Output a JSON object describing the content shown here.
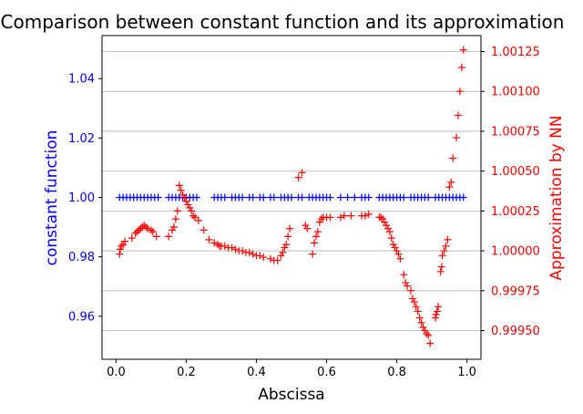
{
  "chart_data": {
    "type": "scatter",
    "title": "Comparison between constant function and its approximation",
    "xlabel": "Abscissa",
    "ylabel": "constant function",
    "y2label": "Approximation by NN",
    "xlim": [
      -0.04,
      1.04
    ],
    "ylim": [
      0.9455,
      1.0545
    ],
    "y2lim": [
      0.99932,
      1.00135
    ],
    "xticks": [
      "0.0",
      "0.2",
      "0.4",
      "0.6",
      "0.8",
      "1.0"
    ],
    "xtick_values": [
      0.0,
      0.2,
      0.4,
      0.6,
      0.8,
      1.0
    ],
    "yticks": [
      "0.96",
      "0.98",
      "1.00",
      "1.02",
      "1.04"
    ],
    "ytick_values": [
      0.96,
      0.98,
      1.0,
      1.02,
      1.04
    ],
    "y2ticks": [
      "0.99950",
      "0.99975",
      "1.00000",
      "1.00025",
      "1.00050",
      "1.00075",
      "1.00100",
      "1.00125"
    ],
    "y2tick_values": [
      0.9995,
      0.99975,
      1.0,
      1.00025,
      1.0005,
      1.00075,
      1.001,
      1.00125
    ],
    "grid": "horizontal lines at right-axis ticks",
    "colors": {
      "left": "#0000ff",
      "right": "#ff0000",
      "grid": "#b0b0b0"
    },
    "series": [
      {
        "marker": "+",
        "axis": "left",
        "color": "#0000ff",
        "x": [
          0.01,
          0.02,
          0.03,
          0.04,
          0.05,
          0.06,
          0.07,
          0.08,
          0.09,
          0.1,
          0.11,
          0.12,
          0.15,
          0.16,
          0.17,
          0.18,
          0.19,
          0.2,
          0.21,
          0.22,
          0.23,
          0.28,
          0.29,
          0.3,
          0.31,
          0.33,
          0.34,
          0.35,
          0.36,
          0.38,
          0.39,
          0.41,
          0.42,
          0.44,
          0.45,
          0.47,
          0.48,
          0.49,
          0.5,
          0.52,
          0.53,
          0.55,
          0.56,
          0.57,
          0.58,
          0.59,
          0.6,
          0.61,
          0.64,
          0.66,
          0.68,
          0.7,
          0.71,
          0.72,
          0.75,
          0.76,
          0.77,
          0.78,
          0.79,
          0.8,
          0.81,
          0.82,
          0.84,
          0.85,
          0.86,
          0.87,
          0.88,
          0.89,
          0.91,
          0.92,
          0.93,
          0.94,
          0.95,
          0.96,
          0.97,
          0.98,
          0.99
        ],
        "y": [
          1.0,
          1.0,
          1.0,
          1.0,
          1.0,
          1.0,
          1.0,
          1.0,
          1.0,
          1.0,
          1.0,
          1.0,
          1.0,
          1.0,
          1.0,
          1.0,
          1.0,
          1.0,
          1.0,
          1.0,
          1.0,
          1.0,
          1.0,
          1.0,
          1.0,
          1.0,
          1.0,
          1.0,
          1.0,
          1.0,
          1.0,
          1.0,
          1.0,
          1.0,
          1.0,
          1.0,
          1.0,
          1.0,
          1.0,
          1.0,
          1.0,
          1.0,
          1.0,
          1.0,
          1.0,
          1.0,
          1.0,
          1.0,
          1.0,
          1.0,
          1.0,
          1.0,
          1.0,
          1.0,
          1.0,
          1.0,
          1.0,
          1.0,
          1.0,
          1.0,
          1.0,
          1.0,
          1.0,
          1.0,
          1.0,
          1.0,
          1.0,
          1.0,
          1.0,
          1.0,
          1.0,
          1.0,
          1.0,
          1.0,
          1.0,
          1.0,
          1.0
        ]
      },
      {
        "marker": "+",
        "axis": "right",
        "color": "#ff0000",
        "x": [
          0.01,
          0.012,
          0.015,
          0.02,
          0.025,
          0.045,
          0.055,
          0.06,
          0.065,
          0.07,
          0.075,
          0.08,
          0.085,
          0.09,
          0.1,
          0.105,
          0.115,
          0.15,
          0.16,
          0.165,
          0.17,
          0.175,
          0.18,
          0.185,
          0.19,
          0.195,
          0.2,
          0.205,
          0.21,
          0.215,
          0.22,
          0.225,
          0.235,
          0.25,
          0.265,
          0.28,
          0.29,
          0.295,
          0.3,
          0.31,
          0.32,
          0.33,
          0.34,
          0.35,
          0.36,
          0.37,
          0.38,
          0.39,
          0.4,
          0.41,
          0.42,
          0.44,
          0.45,
          0.46,
          0.47,
          0.475,
          0.48,
          0.485,
          0.49,
          0.495,
          0.52,
          0.53,
          0.54,
          0.545,
          0.56,
          0.565,
          0.57,
          0.575,
          0.58,
          0.585,
          0.59,
          0.6,
          0.61,
          0.64,
          0.65,
          0.67,
          0.7,
          0.71,
          0.72,
          0.75,
          0.755,
          0.76,
          0.765,
          0.77,
          0.775,
          0.78,
          0.785,
          0.79,
          0.795,
          0.8,
          0.805,
          0.81,
          0.82,
          0.825,
          0.83,
          0.84,
          0.845,
          0.85,
          0.855,
          0.86,
          0.865,
          0.87,
          0.875,
          0.88,
          0.885,
          0.89,
          0.895,
          0.91,
          0.912,
          0.915,
          0.918,
          0.925,
          0.928,
          0.93,
          0.935,
          0.94,
          0.945,
          0.95,
          0.955,
          0.96,
          0.97,
          0.975,
          0.98,
          0.985,
          0.99
        ],
        "y": [
          0.99998,
          1.00001,
          1.00003,
          1.00004,
          1.00006,
          1.00008,
          1.00011,
          1.00012,
          1.00013,
          1.00014,
          1.00015,
          1.00016,
          1.00015,
          1.00014,
          1.00013,
          1.00012,
          1.00009,
          1.00009,
          1.00013,
          1.00015,
          1.0002,
          1.00025,
          1.00041,
          1.00038,
          1.00035,
          1.00033,
          1.00031,
          1.00029,
          1.00027,
          1.00025,
          1.00022,
          1.00021,
          1.00019,
          1.00013,
          1.00007,
          1.00005,
          1.00004,
          1.00003,
          1.00003,
          1.00003,
          1.00002,
          1.00002,
          1.00001,
          1.0,
          1.0,
          0.99999,
          0.99999,
          0.99998,
          0.99997,
          0.99997,
          0.99996,
          0.99995,
          0.99994,
          0.99994,
          0.99997,
          0.99999,
          1.00002,
          1.00004,
          1.00009,
          1.00014,
          1.00046,
          1.00049,
          1.00016,
          1.00014,
          0.99998,
          1.00005,
          1.00009,
          1.00012,
          1.00018,
          1.0002,
          1.00021,
          1.00021,
          1.00021,
          1.00021,
          1.00022,
          1.00022,
          1.00022,
          1.00022,
          1.00023,
          1.00021,
          1.00021,
          1.0002,
          1.00018,
          1.00016,
          1.00014,
          1.00012,
          1.00008,
          1.00004,
          1.00002,
          1.0,
          0.99998,
          0.99995,
          0.99985,
          0.9998,
          0.99978,
          0.99975,
          0.9997,
          0.99968,
          0.99965,
          0.99962,
          0.99958,
          0.99955,
          0.99952,
          0.9995,
          0.99948,
          0.99947,
          0.99942,
          0.99958,
          0.9996,
          0.99962,
          0.99965,
          0.99987,
          0.9999,
          0.99997,
          1.0,
          1.00003,
          1.00007,
          1.0004,
          1.00043,
          1.00058,
          1.00071,
          1.00085,
          1.001,
          1.00115,
          1.00126
        ]
      }
    ]
  }
}
